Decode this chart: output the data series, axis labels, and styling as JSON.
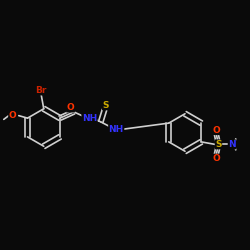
{
  "bg_color": "#0a0a0a",
  "bond_color": "#d0d0d0",
  "fig_width": 2.5,
  "fig_height": 2.5,
  "dpi": 100,
  "colors": {
    "O": "#ff3300",
    "N": "#3333ff",
    "S": "#ccaa00",
    "Br": "#cc2200",
    "C": "#d0d0d0",
    "bond": "#d0d0d0"
  },
  "lw": 1.2,
  "lw_double": 0.8
}
